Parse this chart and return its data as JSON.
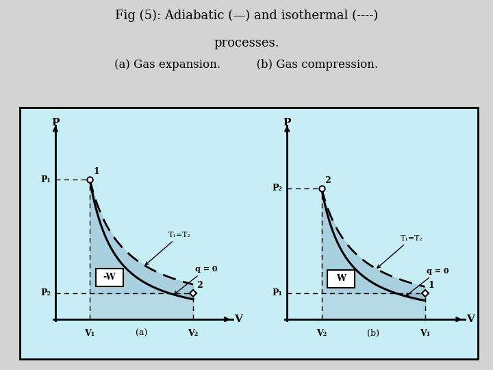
{
  "bg_color": "#d3d3d3",
  "outer_box_bg": "#c8eef5",
  "plot_bg_color": "#c8eef5",
  "shade_upper": "#a8c8d8",
  "shade_lower": "#b0ccd8",
  "title_line1": "Fig (5): Adiabatic (—) and isothermal (----)",
  "title_line2": "processes.",
  "subtitle": "(a) Gas expansion.          (b) Gas compression.",
  "title_fontsize": 13,
  "subtitle_fontsize": 12,
  "gamma": 1.4,
  "V1a": 1.5,
  "V2a": 6.0,
  "P1a": 8.0,
  "P2a": 1.5,
  "V2b": 1.5,
  "V1b": 6.0,
  "P2b": 7.5,
  "P1b": 1.5
}
